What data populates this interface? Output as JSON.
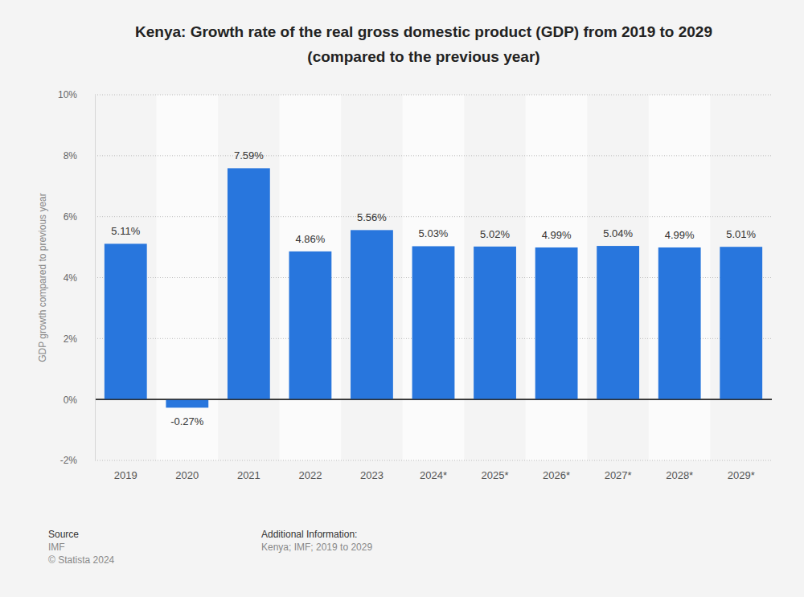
{
  "chart_data": {
    "type": "bar",
    "title": [
      "Kenya: Growth rate of the real gross domestic product (GDP) from 2019 to 2029",
      "(compared to the previous year)"
    ],
    "y_label": "GDP growth compared to previous year",
    "categories": [
      "2019",
      "2020",
      "2021",
      "2022",
      "2023",
      "2024*",
      "2025*",
      "2026*",
      "2027*",
      "2028*",
      "2029*"
    ],
    "values": [
      5.11,
      -0.27,
      7.59,
      4.86,
      5.56,
      5.03,
      5.02,
      4.99,
      5.04,
      4.99,
      5.01
    ],
    "value_labels": [
      "5.11%",
      "-0.27%",
      "7.59%",
      "4.86%",
      "5.56%",
      "5.03%",
      "5.02%",
      "4.99%",
      "5.04%",
      "4.99%",
      "5.01%"
    ],
    "color": "#2876dd",
    "ylim": [
      -2,
      10
    ],
    "yticks": [
      {
        "value": -2,
        "label": "-2%"
      },
      {
        "value": 0,
        "label": "0%"
      },
      {
        "value": 2,
        "label": "2%"
      },
      {
        "value": 4,
        "label": "4%"
      },
      {
        "value": 6,
        "label": "6%"
      },
      {
        "value": 8,
        "label": "8%"
      },
      {
        "value": 10,
        "label": "10%"
      }
    ],
    "grid": true,
    "data_labels": true,
    "source_label": "Source",
    "source": "IMF",
    "copyright": "© Statista 2024",
    "info_label": "Additional Information:",
    "info": "Kenya; IMF; 2019 to 2029"
  }
}
